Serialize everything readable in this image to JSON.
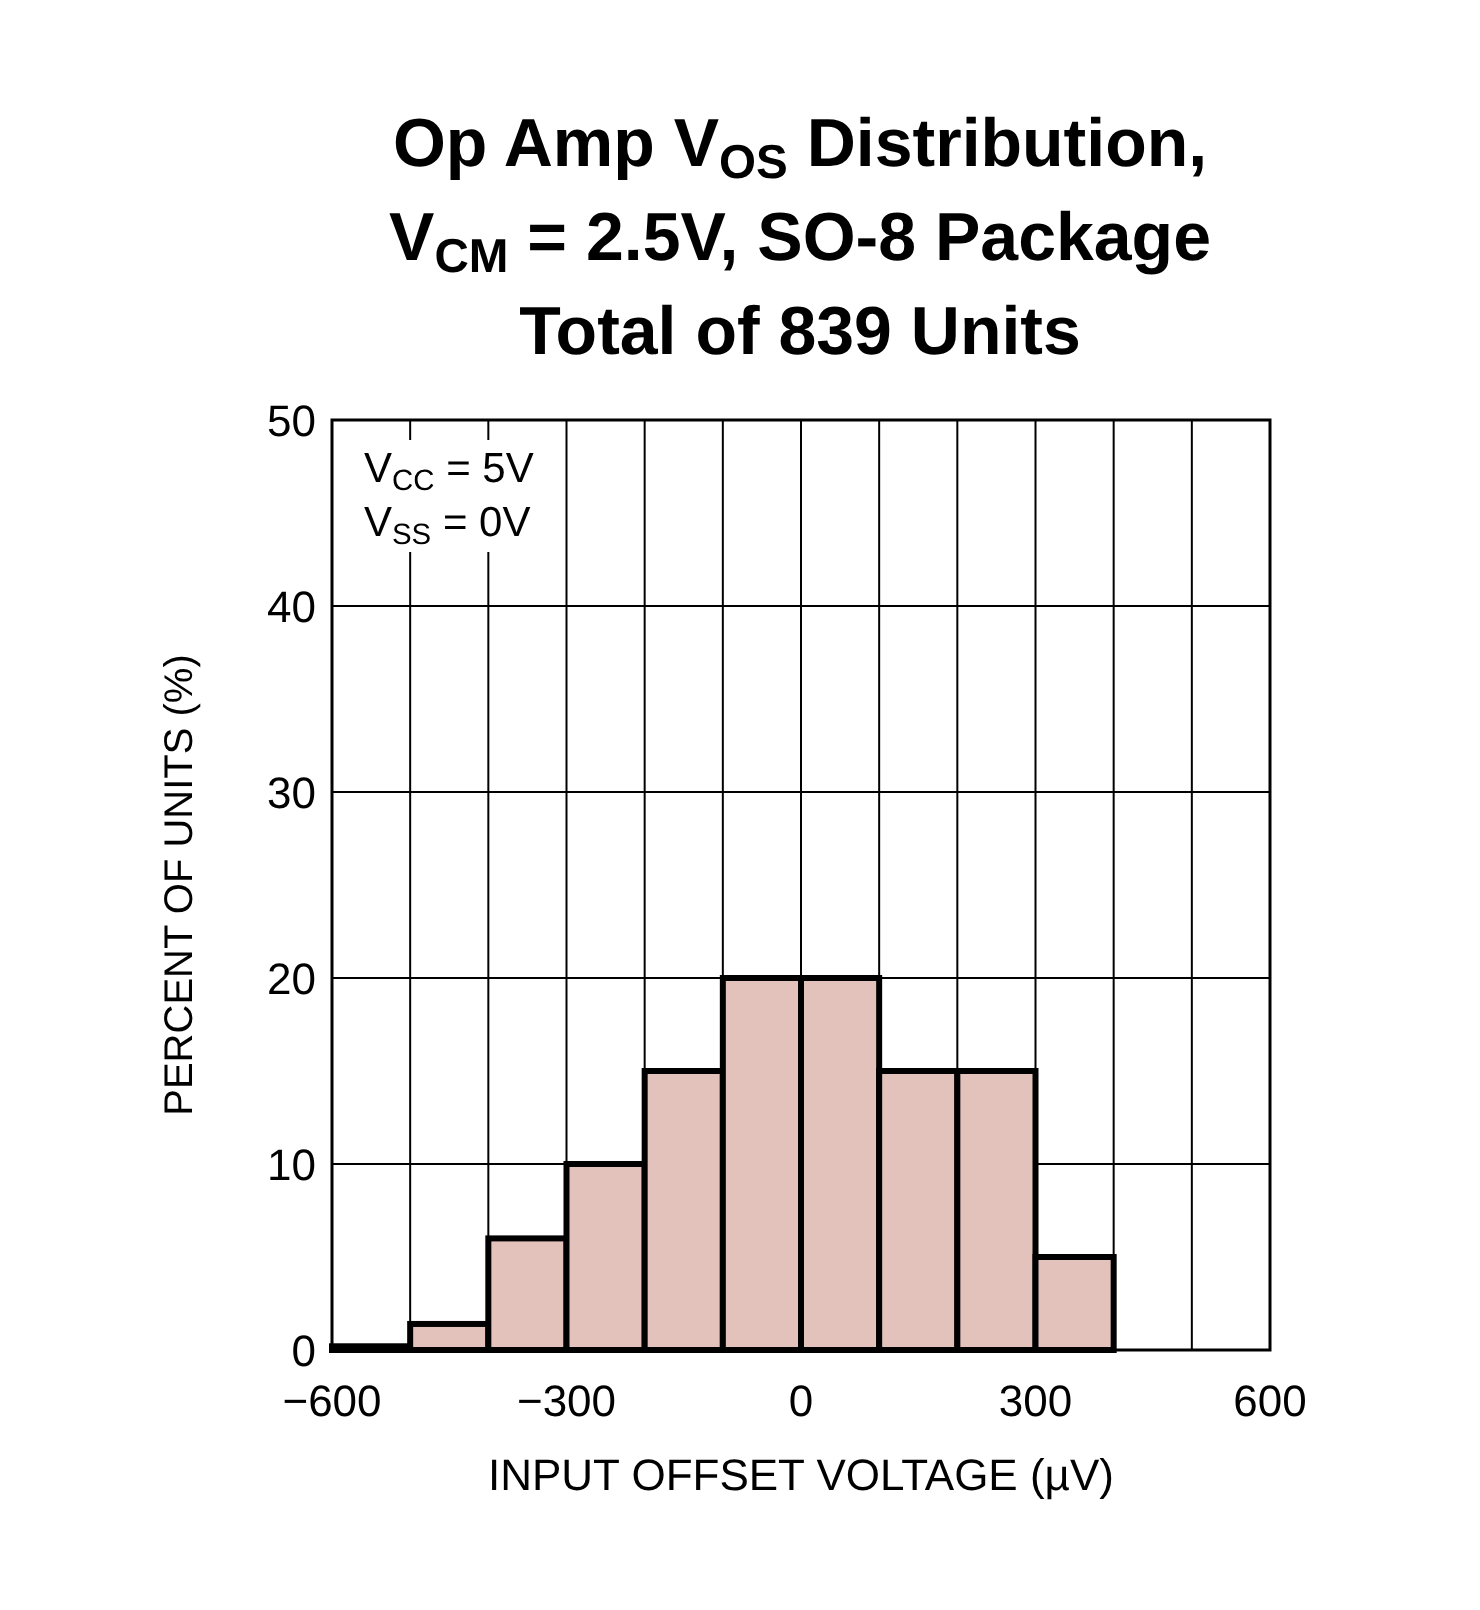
{
  "chart_data": {
    "type": "histogram",
    "title": "Op Amp V$_{OS}$ Distribution,\nV$_{CM}$ = 2.5V, SO-8 Package\nTotal of 839 Units",
    "xlabel": "INPUT OFFSET VOLTAGE (µV)",
    "ylabel": "PERCENT OF UNITS (%)",
    "annotations": [
      "V$_{CC}$ = 5V",
      "V$_{SS}$ = 0V"
    ],
    "bins": [
      -600,
      -500,
      -400,
      -300,
      -200,
      -100,
      0,
      100,
      200,
      300,
      400,
      500,
      600
    ],
    "values": [
      0.2,
      1.4,
      6,
      10,
      15,
      20,
      20,
      15,
      15,
      5,
      0,
      0
    ],
    "color": "#e4c2bc",
    "xlim": [
      -600,
      600
    ],
    "xticks": [
      {
        "value": -600,
        "label": "−600"
      },
      {
        "value": -500,
        "label": null
      },
      {
        "value": -400,
        "label": null
      },
      {
        "value": -300,
        "label": "−300"
      },
      {
        "value": -200,
        "label": null
      },
      {
        "value": -100,
        "label": null
      },
      0,
      {
        "value": 100,
        "label": null
      },
      {
        "value": 200,
        "label": null
      },
      300,
      {
        "value": 400,
        "label": null
      },
      {
        "value": 500,
        "label": null
      },
      600
    ],
    "ylim": [
      0,
      50
    ],
    "yticks": [
      0,
      10,
      20,
      30,
      40,
      50
    ],
    "grid": true
  }
}
